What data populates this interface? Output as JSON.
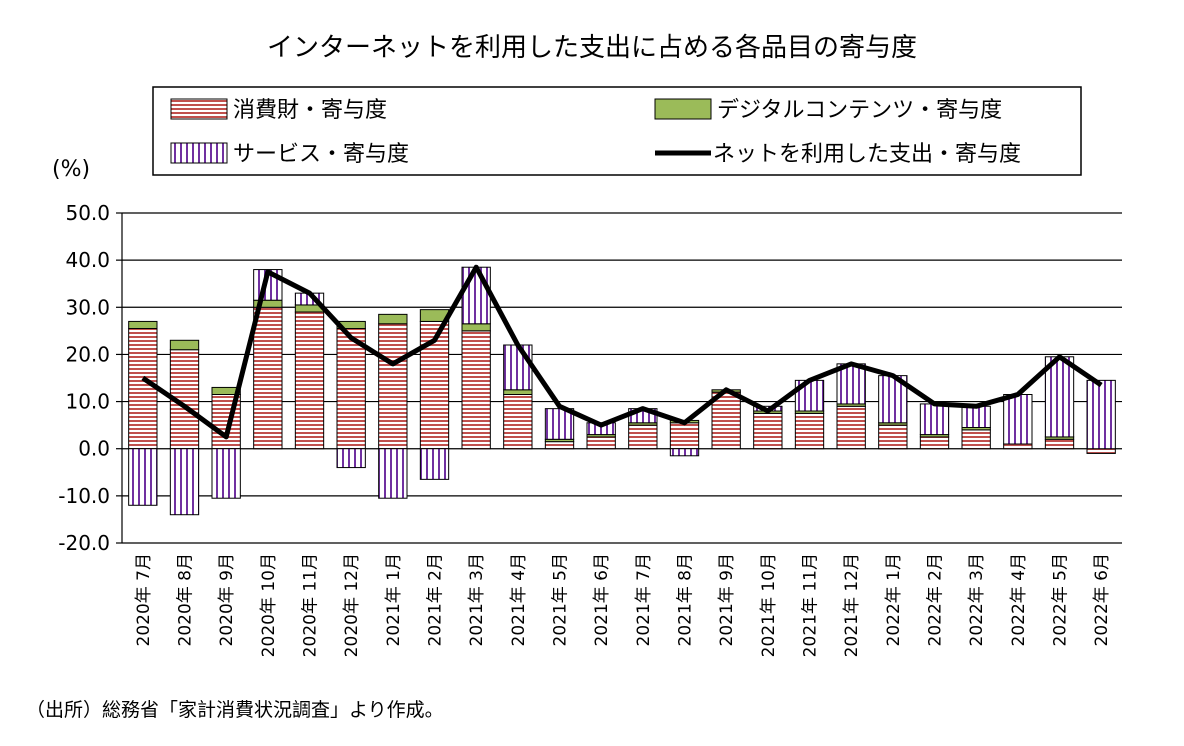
{
  "chart_data": {
    "type": "bar",
    "title": "インターネットを利用した支出に占める各品目の寄与度",
    "ylabel": "(%)",
    "ylim": [
      -20,
      50
    ],
    "yticks": [
      "50.0",
      "40.0",
      "30.0",
      "20.0",
      "10.0",
      "0.0",
      "-10.0",
      "-20.0"
    ],
    "grid": true,
    "legend_position": "top",
    "source": "（出所）総務省「家計消費状況調査」より作成。",
    "categories": [
      "2020年 7月",
      "2020年 8月",
      "2020年 9月",
      "2020年 10月",
      "2020年 11月",
      "2020年 12月",
      "2021年 1月",
      "2021年 2月",
      "2021年 3月",
      "2021年 4月",
      "2021年 5月",
      "2021年 6月",
      "2021年 7月",
      "2021年 8月",
      "2021年 9月",
      "2021年 10月",
      "2021年 11月",
      "2021年 12月",
      "2022年 1月",
      "2022年 2月",
      "2022年 3月",
      "2022年 4月",
      "2022年 5月",
      "2022年 6月"
    ],
    "series": [
      {
        "name": "消費財・寄与度",
        "kind": "bar",
        "color": "#c0504d",
        "values": [
          25.5,
          21.0,
          11.5,
          30.0,
          29.0,
          25.5,
          26.5,
          27.0,
          25.0,
          11.5,
          1.5,
          2.5,
          5.0,
          5.5,
          12.0,
          7.5,
          7.5,
          9.0,
          5.0,
          2.5,
          4.0,
          1.0,
          2.0,
          -1.0
        ]
      },
      {
        "name": "デジタルコンテンツ・寄与度",
        "kind": "bar",
        "color": "#9bbb59",
        "values": [
          1.5,
          2.0,
          1.5,
          1.5,
          1.5,
          1.5,
          2.0,
          2.5,
          1.5,
          1.0,
          0.5,
          0.5,
          0.5,
          0.5,
          0.5,
          0.5,
          0.5,
          0.5,
          0.5,
          0.5,
          0.5,
          0.0,
          0.5,
          0.0
        ]
      },
      {
        "name": "サービス・寄与度",
        "kind": "bar",
        "color": "#7030a0",
        "values": [
          -12.0,
          -14.0,
          -10.5,
          6.5,
          2.5,
          -4.0,
          -10.5,
          -6.5,
          12.0,
          9.5,
          6.5,
          2.5,
          3.0,
          -1.5,
          0.0,
          1.0,
          6.5,
          8.5,
          10.0,
          6.5,
          4.5,
          10.5,
          17.0,
          14.5
        ]
      },
      {
        "name": "ネットを利用した支出・寄与度",
        "kind": "line",
        "color": "#000000",
        "values": [
          15.0,
          9.0,
          2.5,
          37.5,
          33.0,
          23.5,
          18.0,
          23.0,
          38.5,
          22.0,
          9.0,
          5.0,
          8.5,
          5.5,
          12.5,
          8.0,
          14.5,
          18.0,
          15.5,
          9.5,
          9.0,
          11.5,
          19.5,
          13.5
        ]
      }
    ]
  }
}
